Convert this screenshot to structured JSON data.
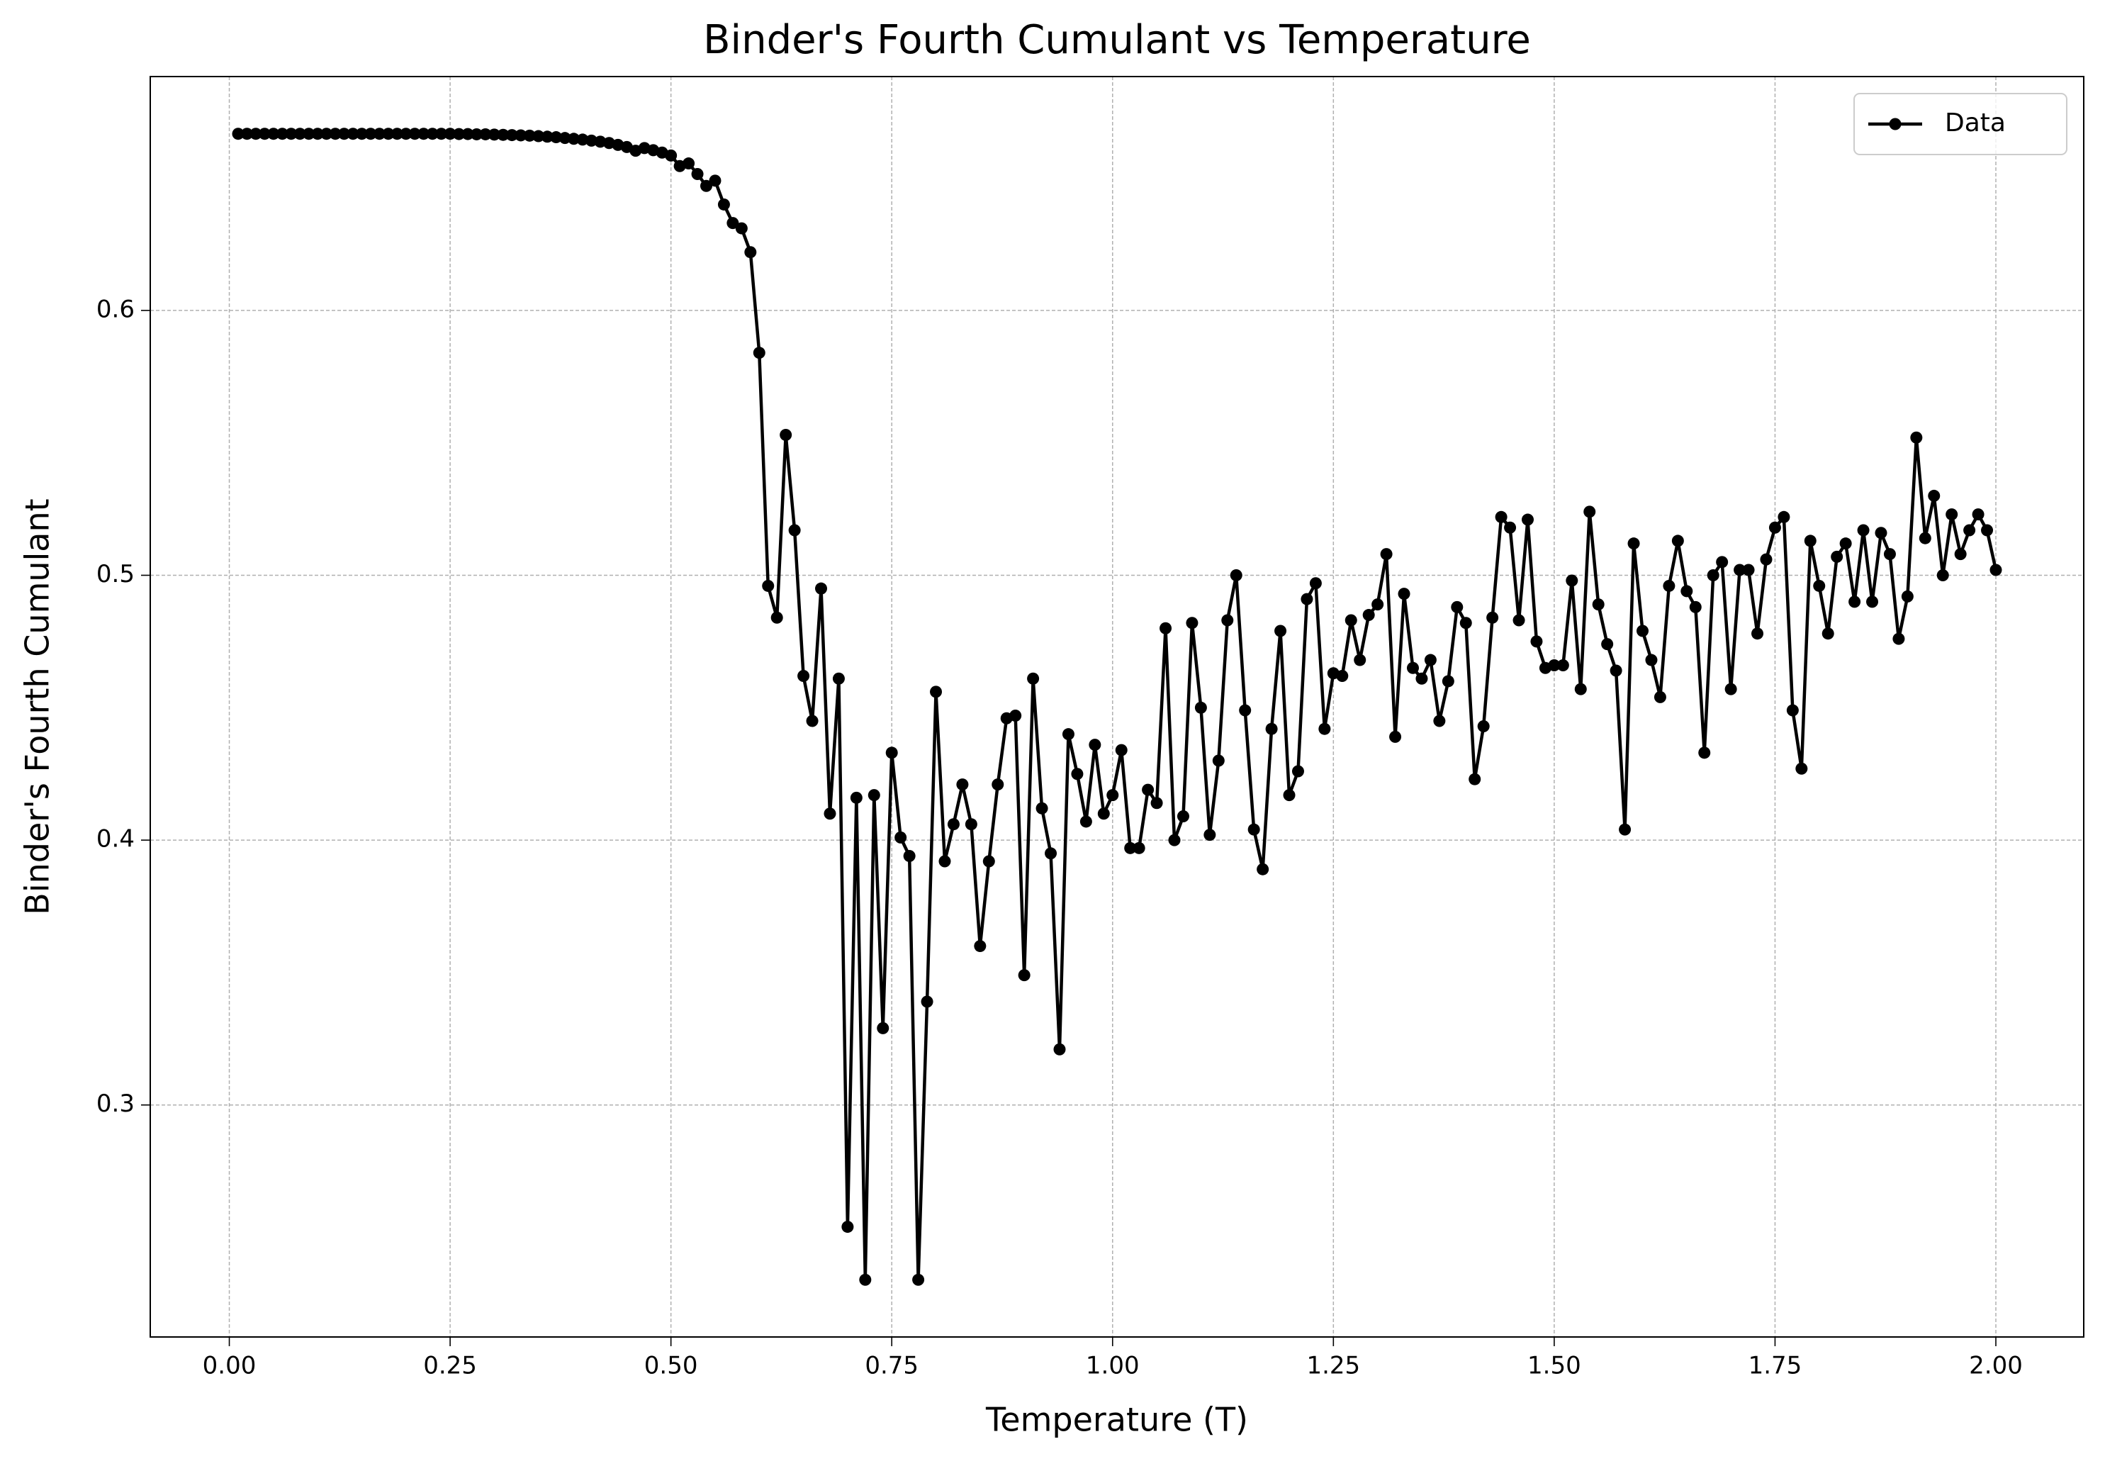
{
  "chart_data": {
    "type": "line",
    "title": "Binder's Fourth Cumulant vs Temperature",
    "xlabel": "Temperature (T)",
    "ylabel": "Binder's Fourth Cumulant",
    "x": [
      0.01,
      0.02,
      0.03,
      0.04,
      0.05,
      0.06,
      0.07,
      0.08,
      0.09,
      0.1,
      0.11,
      0.12,
      0.13,
      0.14,
      0.15,
      0.16,
      0.17,
      0.18,
      0.19,
      0.2,
      0.21,
      0.22,
      0.23,
      0.24,
      0.25,
      0.26,
      0.27,
      0.28,
      0.29,
      0.3,
      0.31,
      0.32,
      0.33,
      0.34,
      0.35,
      0.36,
      0.37,
      0.38,
      0.39,
      0.4,
      0.41,
      0.42,
      0.43,
      0.44,
      0.45,
      0.46,
      0.47,
      0.48,
      0.49,
      0.5,
      0.51,
      0.52,
      0.53,
      0.54,
      0.55,
      0.56,
      0.57,
      0.58,
      0.59,
      0.6,
      0.61,
      0.62,
      0.63,
      0.64,
      0.65,
      0.66,
      0.67,
      0.68,
      0.69,
      0.7,
      0.71,
      0.72,
      0.73,
      0.74,
      0.75,
      0.76,
      0.77,
      0.78,
      0.79,
      0.8,
      0.81,
      0.82,
      0.83,
      0.84,
      0.85,
      0.86,
      0.87,
      0.88,
      0.89,
      0.9,
      0.91,
      0.92,
      0.93,
      0.94,
      0.95,
      0.96,
      0.97,
      0.98,
      0.99,
      1.0,
      1.01,
      1.02,
      1.03,
      1.04,
      1.05,
      1.06,
      1.07,
      1.08,
      1.09,
      1.1,
      1.11,
      1.12,
      1.13,
      1.14,
      1.15,
      1.16,
      1.17,
      1.18,
      1.19,
      1.2,
      1.21,
      1.22,
      1.23,
      1.24,
      1.25,
      1.26,
      1.27,
      1.28,
      1.29,
      1.3,
      1.31,
      1.32,
      1.33,
      1.34,
      1.35,
      1.36,
      1.37,
      1.38,
      1.39,
      1.4,
      1.41,
      1.42,
      1.43,
      1.44,
      1.45,
      1.46,
      1.47,
      1.48,
      1.49,
      1.5,
      1.51,
      1.52,
      1.53,
      1.54,
      1.55,
      1.56,
      1.57,
      1.58,
      1.59,
      1.6,
      1.61,
      1.62,
      1.63,
      1.64,
      1.65,
      1.66,
      1.67,
      1.68,
      1.69,
      1.7,
      1.71,
      1.72,
      1.73,
      1.74,
      1.75,
      1.76,
      1.77,
      1.78,
      1.79,
      1.8,
      1.81,
      1.82,
      1.83,
      1.84,
      1.85,
      1.86,
      1.87,
      1.88,
      1.89,
      1.9,
      1.91,
      1.92,
      1.93,
      1.94,
      1.95,
      1.96,
      1.97,
      1.98,
      1.99,
      2.0
    ],
    "series": [
      {
        "name": "Data",
        "color": "#000000",
        "values": [
          0.6667,
          0.6667,
          0.6667,
          0.6667,
          0.6667,
          0.6667,
          0.6667,
          0.6667,
          0.6667,
          0.6667,
          0.6667,
          0.6667,
          0.6667,
          0.6667,
          0.6667,
          0.6667,
          0.6667,
          0.6667,
          0.6667,
          0.6667,
          0.6667,
          0.6667,
          0.6667,
          0.6667,
          0.6667,
          0.6666,
          0.6666,
          0.6665,
          0.6665,
          0.6664,
          0.6663,
          0.6662,
          0.6661,
          0.666,
          0.6658,
          0.6656,
          0.6654,
          0.6651,
          0.6648,
          0.6645,
          0.6641,
          0.6637,
          0.6632,
          0.6625,
          0.6617,
          0.6603,
          0.6613,
          0.6605,
          0.6596,
          0.6585,
          0.6545,
          0.6555,
          0.6515,
          0.647,
          0.649,
          0.64,
          0.633,
          0.631,
          0.622,
          0.584,
          0.496,
          0.484,
          0.553,
          0.517,
          0.462,
          0.445,
          0.495,
          0.41,
          0.461,
          0.254,
          0.416,
          0.234,
          0.417,
          0.329,
          0.433,
          0.401,
          0.394,
          0.234,
          0.339,
          0.456,
          0.392,
          0.406,
          0.421,
          0.406,
          0.36,
          0.392,
          0.421,
          0.446,
          0.447,
          0.349,
          0.461,
          0.412,
          0.395,
          0.321,
          0.44,
          0.425,
          0.407,
          0.436,
          0.41,
          0.417,
          0.434,
          0.397,
          0.397,
          0.419,
          0.414,
          0.48,
          0.4,
          0.409,
          0.482,
          0.45,
          0.402,
          0.43,
          0.483,
          0.5,
          0.449,
          0.404,
          0.389,
          0.442,
          0.479,
          0.417,
          0.426,
          0.491,
          0.497,
          0.442,
          0.463,
          0.462,
          0.483,
          0.468,
          0.485,
          0.489,
          0.508,
          0.439,
          0.493,
          0.465,
          0.461,
          0.468,
          0.445,
          0.46,
          0.488,
          0.482,
          0.423,
          0.443,
          0.484,
          0.522,
          0.518,
          0.483,
          0.521,
          0.475,
          0.465,
          0.466,
          0.466,
          0.498,
          0.457,
          0.524,
          0.489,
          0.474,
          0.464,
          0.404,
          0.512,
          0.479,
          0.468,
          0.454,
          0.496,
          0.513,
          0.494,
          0.488,
          0.433,
          0.5,
          0.505,
          0.457,
          0.502,
          0.502,
          0.478,
          0.506,
          0.518,
          0.522,
          0.449,
          0.427,
          0.513,
          0.496,
          0.478,
          0.507,
          0.512,
          0.49,
          0.517,
          0.49,
          0.516,
          0.508,
          0.476,
          0.492,
          0.552,
          0.514,
          0.53,
          0.5,
          0.523,
          0.508,
          0.517,
          0.523,
          0.517,
          0.502
        ]
      }
    ],
    "xlim": [
      -0.0895,
      2.0995
    ],
    "ylim": [
      0.2124,
      0.6883
    ],
    "xticks": [
      {
        "value": 0,
        "label": "0.00"
      },
      {
        "value": 0.25,
        "label": "0.25"
      },
      {
        "value": 0.5,
        "label": "0.50"
      },
      {
        "value": 0.75,
        "label": "0.75"
      },
      {
        "value": 1,
        "label": "1.00"
      },
      {
        "value": 1.25,
        "label": "1.25"
      },
      {
        "value": 1.5,
        "label": "1.50"
      },
      {
        "value": 1.75,
        "label": "1.75"
      },
      {
        "value": 2,
        "label": "2.00"
      }
    ],
    "yticks": [
      0.3,
      0.4,
      0.5,
      0.6
    ],
    "grid": true,
    "legend": "upper right"
  }
}
